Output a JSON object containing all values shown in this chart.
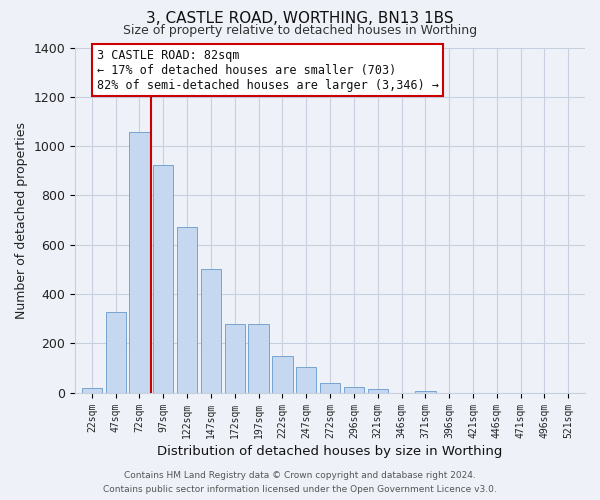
{
  "title": "3, CASTLE ROAD, WORTHING, BN13 1BS",
  "subtitle": "Size of property relative to detached houses in Worthing",
  "xlabel": "Distribution of detached houses by size in Worthing",
  "ylabel": "Number of detached properties",
  "bar_labels": [
    "22sqm",
    "47sqm",
    "72sqm",
    "97sqm",
    "122sqm",
    "147sqm",
    "172sqm",
    "197sqm",
    "222sqm",
    "247sqm",
    "272sqm",
    "296sqm",
    "321sqm",
    "346sqm",
    "371sqm",
    "396sqm",
    "421sqm",
    "446sqm",
    "471sqm",
    "496sqm",
    "521sqm"
  ],
  "bar_values": [
    20,
    328,
    1057,
    922,
    671,
    503,
    277,
    277,
    150,
    105,
    40,
    22,
    15,
    0,
    8,
    0,
    0,
    0,
    0,
    0,
    0
  ],
  "bar_color": "#c5d8f0",
  "bar_edge_color": "#6699cc",
  "vline_x": 2.5,
  "vline_color": "#cc0000",
  "annotation_text": "3 CASTLE ROAD: 82sqm\n← 17% of detached houses are smaller (703)\n82% of semi-detached houses are larger (3,346) →",
  "annotation_box_color": "#ffffff",
  "annotation_box_edge": "#cc0000",
  "ylim": [
    0,
    1400
  ],
  "yticks": [
    0,
    200,
    400,
    600,
    800,
    1000,
    1200,
    1400
  ],
  "bg_color": "#eef2f8",
  "grid_color": "#c8d0e0",
  "footer_line1": "Contains HM Land Registry data © Crown copyright and database right 2024.",
  "footer_line2": "Contains public sector information licensed under the Open Government Licence v3.0."
}
